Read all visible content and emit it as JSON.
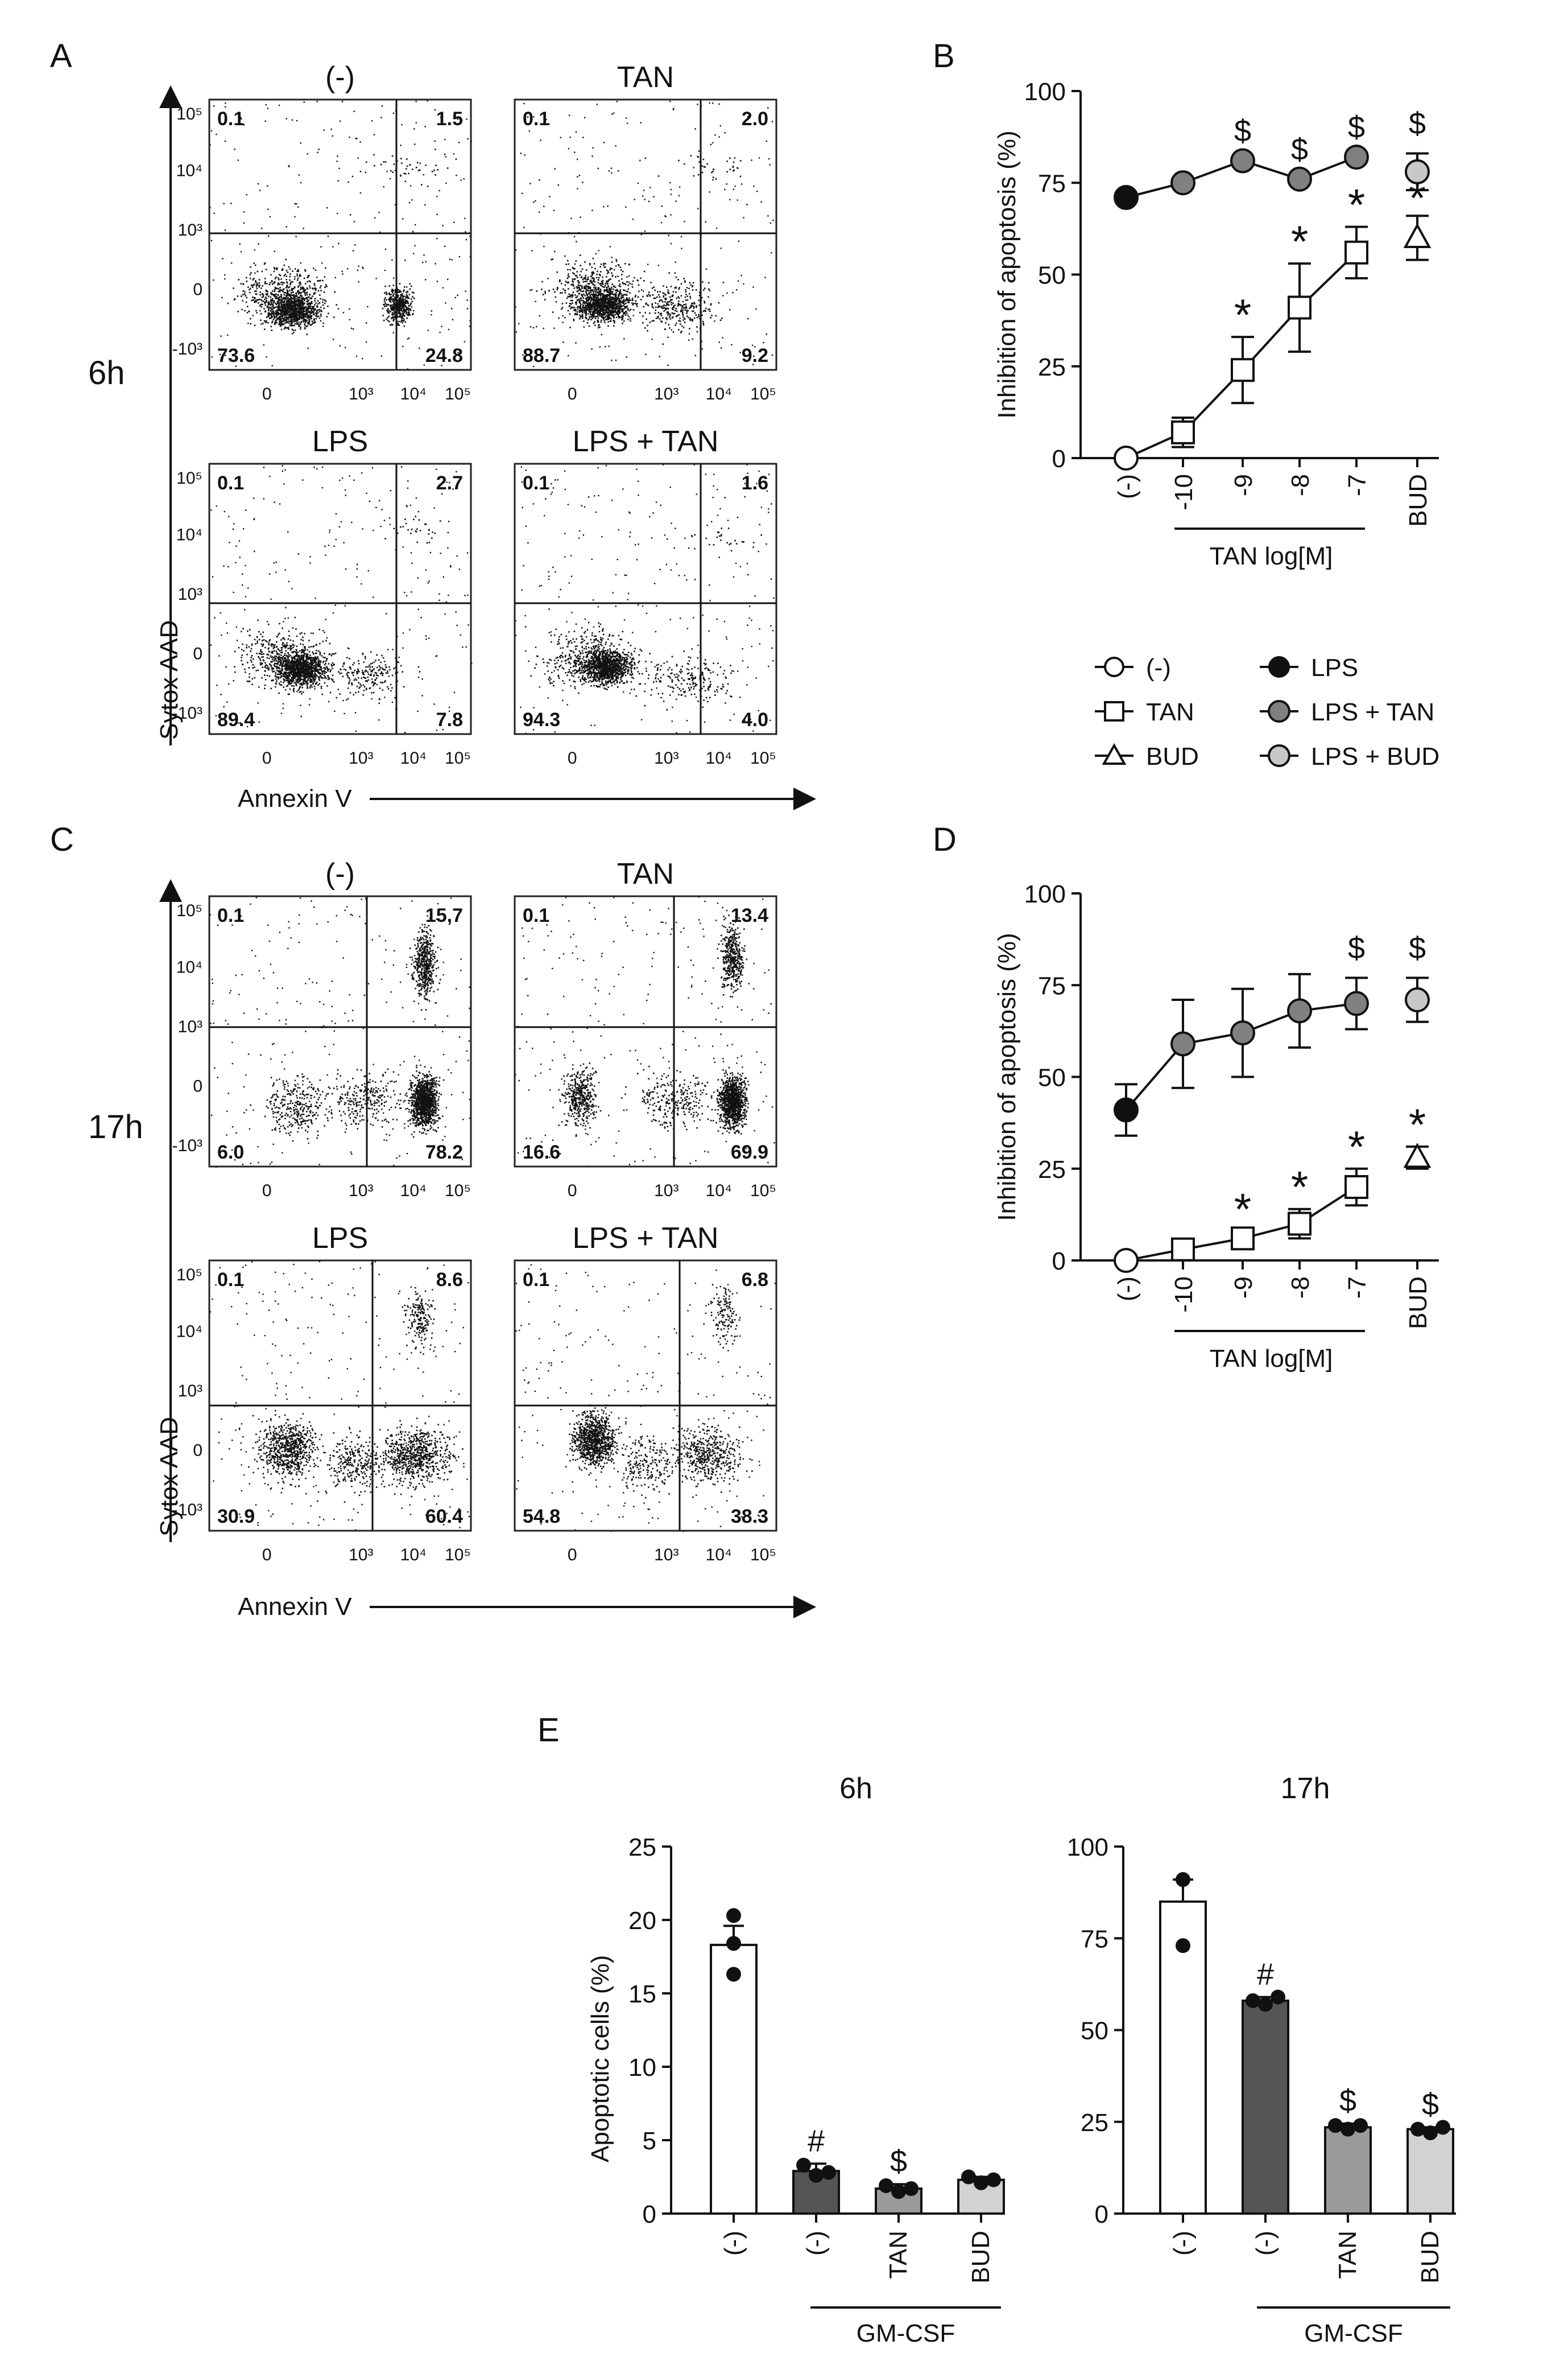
{
  "figure": {
    "panels": {
      "A": "A",
      "B": "B",
      "C": "C",
      "D": "D",
      "E": "E"
    },
    "time_labels": {
      "A": "6h",
      "C": "17h"
    },
    "flow_axes": {
      "y": "Sytox AAD",
      "x": "Annexin V"
    },
    "flow_x_ticks": [
      "0",
      "10³",
      "10⁴",
      "10⁵"
    ],
    "flow_y_ticks": [
      "10⁵",
      "10⁴",
      "10³",
      "0",
      "-10³"
    ],
    "flow_plots": [
      {
        "title": "(-)",
        "ul": "0.1",
        "ur": "1.5",
        "ll": "73.6",
        "lr": "24.8"
      },
      {
        "title": "TAN",
        "ul": "0.1",
        "ur": "2.0",
        "ll": "88.7",
        "lr": "9.2"
      },
      {
        "title": "LPS",
        "ul": "0.1",
        "ur": "2.7",
        "ll": "89.4",
        "lr": "7.8"
      },
      {
        "title": "LPS + TAN",
        "ul": "0.1",
        "ur": "1.6",
        "ll": "94.3",
        "lr": "4.0"
      },
      {
        "title": "(-)",
        "ul": "0.1",
        "ur": "15,7",
        "ll": "6.0",
        "lr": "78.2"
      },
      {
        "title": "TAN",
        "ul": "0.1",
        "ur": "13.4",
        "ll": "16.6",
        "lr": "69.9"
      },
      {
        "title": "LPS",
        "ul": "0.1",
        "ur": "8.6",
        "ll": "30.9",
        "lr": "60.4"
      },
      {
        "title": "LPS + TAN",
        "ul": "0.1",
        "ur": "6.8",
        "ll": "54.8",
        "lr": "38.3"
      }
    ],
    "dose_ylabel": "Inhibition of apoptosis (%)",
    "dose_xgroup": "TAN log[M]",
    "dose_xticks": [
      "(-)",
      "-10",
      "-9",
      "-8",
      "-7",
      "BUD"
    ],
    "dose_yticks": [
      "0",
      "25",
      "50",
      "75",
      "100"
    ],
    "legend": {
      "neg": "(-)",
      "tan": "TAN",
      "bud": "BUD",
      "lps": "LPS",
      "lps_tan": "LPS + TAN",
      "lps_bud": "LPS + BUD"
    },
    "e_ylabel": "Apoptotic cells (%)",
    "e_titles": [
      "6h",
      "17h"
    ],
    "e_group": "GM-CSF",
    "e_xticks": [
      "(-)",
      "(-)",
      "TAN",
      "BUD"
    ],
    "e_yticks_6h": [
      "0",
      "5",
      "10",
      "15",
      "20",
      "25"
    ],
    "e_yticks_17h": [
      "0",
      "25",
      "50",
      "75",
      "100"
    ],
    "sig": {
      "dollar": "$",
      "hash": "#",
      "star": "*"
    },
    "colors": {
      "lps": "#111111",
      "lps_tan": "#808080",
      "lps_bud": "#c8c8c8",
      "bar_gmcsf": "#555555",
      "bar_tan": "#9a9a9a",
      "bar_bud": "#d2d2d2"
    }
  },
  "chart_data": [
    {
      "id": "B",
      "type": "line",
      "categories": [
        "(-)",
        "-10",
        "-9",
        "-8",
        "-7",
        "BUD"
      ],
      "ylabel": "Inhibition of apoptosis (%)",
      "xlabel": "TAN log[M]",
      "ylim": [
        0,
        100
      ],
      "series": [
        {
          "name": "(-)",
          "points": [
            {
              "x": "(-)",
              "y": 0,
              "err": 0
            }
          ]
        },
        {
          "name": "TAN",
          "points": [
            {
              "x": "-10",
              "y": 7,
              "err": 4
            },
            {
              "x": "-9",
              "y": 24,
              "err": 9
            },
            {
              "x": "-8",
              "y": 41,
              "err": 12
            },
            {
              "x": "-7",
              "y": 56,
              "err": 7
            }
          ]
        },
        {
          "name": "BUD",
          "points": [
            {
              "x": "BUD",
              "y": 60,
              "err": 6
            }
          ]
        },
        {
          "name": "LPS",
          "points": [
            {
              "x": "(-)",
              "y": 71,
              "err": 0
            }
          ]
        },
        {
          "name": "LPS + TAN",
          "points": [
            {
              "x": "-10",
              "y": 75,
              "err": 0
            },
            {
              "x": "-9",
              "y": 81,
              "err": 0
            },
            {
              "x": "-8",
              "y": 76,
              "err": 0
            },
            {
              "x": "-7",
              "y": 82,
              "err": 0
            }
          ]
        },
        {
          "name": "LPS + BUD",
          "points": [
            {
              "x": "BUD",
              "y": 78,
              "err": 5
            }
          ]
        }
      ],
      "annotations": [
        {
          "series": "LPS + TAN",
          "x": "-9",
          "text": "$"
        },
        {
          "series": "LPS + TAN",
          "x": "-8",
          "text": "$"
        },
        {
          "series": "LPS + TAN",
          "x": "-7",
          "text": "$"
        },
        {
          "series": "LPS + BUD",
          "x": "BUD",
          "text": "$"
        },
        {
          "series": "TAN",
          "x": "-9",
          "text": "*"
        },
        {
          "series": "TAN",
          "x": "-8",
          "text": "*"
        },
        {
          "series": "TAN",
          "x": "-7",
          "text": "*"
        },
        {
          "series": "BUD",
          "x": "BUD",
          "text": "*"
        }
      ]
    },
    {
      "id": "D",
      "type": "line",
      "categories": [
        "(-)",
        "-10",
        "-9",
        "-8",
        "-7",
        "BUD"
      ],
      "ylabel": "Inhibition of apoptosis (%)",
      "xlabel": "TAN log[M]",
      "ylim": [
        0,
        100
      ],
      "series": [
        {
          "name": "(-)",
          "points": [
            {
              "x": "(-)",
              "y": 0,
              "err": 0
            }
          ]
        },
        {
          "name": "TAN",
          "points": [
            {
              "x": "-10",
              "y": 3,
              "err": 2
            },
            {
              "x": "-9",
              "y": 6,
              "err": 2
            },
            {
              "x": "-8",
              "y": 10,
              "err": 4
            },
            {
              "x": "-7",
              "y": 20,
              "err": 5
            }
          ]
        },
        {
          "name": "BUD",
          "points": [
            {
              "x": "BUD",
              "y": 28,
              "err": 3
            }
          ]
        },
        {
          "name": "LPS",
          "points": [
            {
              "x": "(-)",
              "y": 41,
              "err": 7
            }
          ]
        },
        {
          "name": "LPS + TAN",
          "points": [
            {
              "x": "-10",
              "y": 59,
              "err": 12
            },
            {
              "x": "-9",
              "y": 62,
              "err": 12
            },
            {
              "x": "-8",
              "y": 68,
              "err": 10
            },
            {
              "x": "-7",
              "y": 70,
              "err": 7
            }
          ]
        },
        {
          "name": "LPS + BUD",
          "points": [
            {
              "x": "BUD",
              "y": 71,
              "err": 6
            }
          ]
        }
      ],
      "annotations": [
        {
          "series": "LPS + TAN",
          "x": "-7",
          "text": "$"
        },
        {
          "series": "LPS + BUD",
          "x": "BUD",
          "text": "$"
        },
        {
          "series": "TAN",
          "x": "-9",
          "text": "*"
        },
        {
          "series": "TAN",
          "x": "-8",
          "text": "*"
        },
        {
          "series": "TAN",
          "x": "-7",
          "text": "*"
        },
        {
          "series": "BUD",
          "x": "BUD",
          "text": "*"
        }
      ]
    },
    {
      "id": "E-6h",
      "type": "bar",
      "title": "6h",
      "categories": [
        "(-)",
        "(-)",
        "TAN",
        "BUD"
      ],
      "values": [
        18.3,
        2.9,
        1.7,
        2.3
      ],
      "errors": [
        1.3,
        0.5,
        0.3,
        0.2
      ],
      "points": [
        [
          20.3,
          18.4,
          16.3
        ],
        [
          3.3,
          2.6,
          2.8
        ],
        [
          1.9,
          1.5,
          1.7
        ],
        [
          2.5,
          2.1,
          2.3
        ]
      ],
      "marks": [
        "",
        "#",
        "$",
        ""
      ],
      "group_label": "GM-CSF",
      "ylabel": "Apoptotic cells (%)",
      "ylim": [
        0,
        25
      ]
    },
    {
      "id": "E-17h",
      "type": "bar",
      "title": "17h",
      "categories": [
        "(-)",
        "(-)",
        "TAN",
        "BUD"
      ],
      "values": [
        85,
        58,
        23.5,
        23
      ],
      "errors": [
        6,
        1,
        1,
        0.5
      ],
      "points": [
        [
          91,
          91,
          73
        ],
        [
          58,
          57,
          59
        ],
        [
          24,
          23,
          24
        ],
        [
          23,
          22,
          23.5
        ]
      ],
      "marks": [
        "",
        "#",
        "$",
        "$"
      ],
      "group_label": "GM-CSF",
      "ylabel": "Apoptotic cells (%)",
      "ylim": [
        0,
        100
      ]
    }
  ]
}
